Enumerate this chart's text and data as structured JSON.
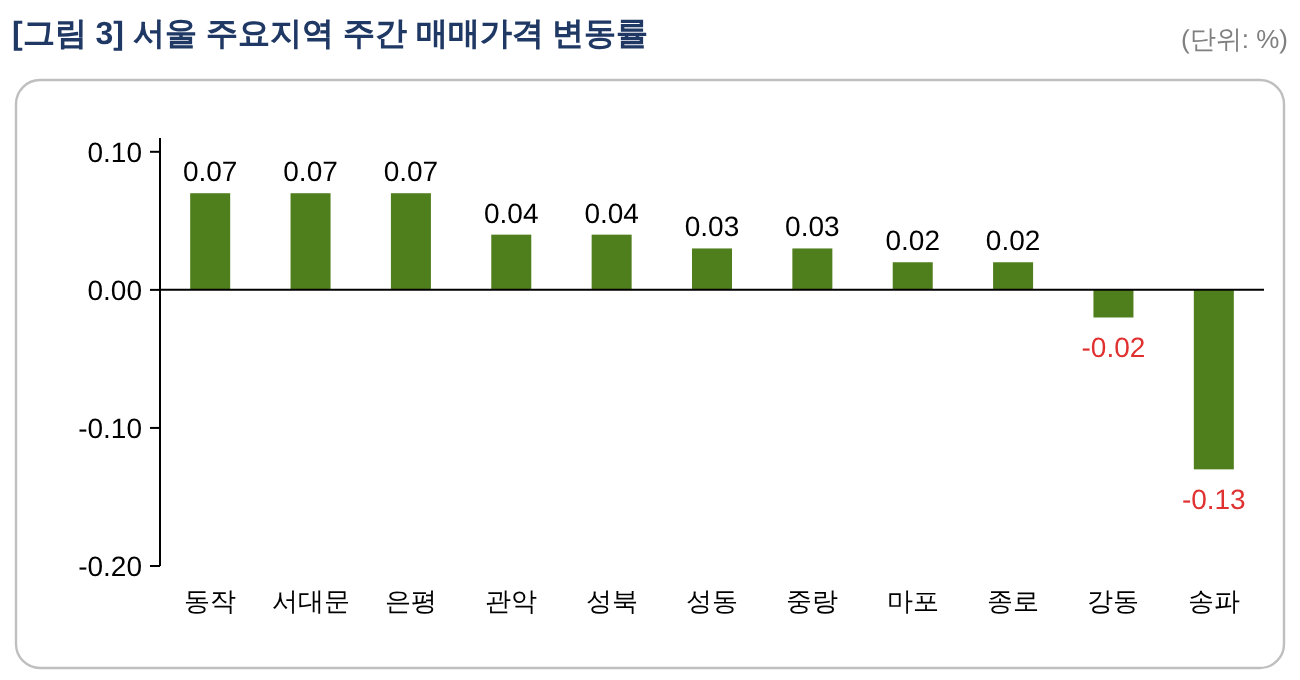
{
  "chart_data": {
    "type": "bar",
    "title": "[그림 3] 서울 주요지역 주간 매매가격 변동률",
    "annotations": [
      "(단위: %)"
    ],
    "categories": [
      "동작",
      "서대문",
      "은평",
      "관악",
      "성북",
      "성동",
      "중랑",
      "마포",
      "종로",
      "강동",
      "송파"
    ],
    "values": [
      0.07,
      0.07,
      0.07,
      0.04,
      0.04,
      0.03,
      0.03,
      0.02,
      0.02,
      -0.02,
      -0.13
    ],
    "color": "#4f7f1c",
    "data_labels": true,
    "ylim": [
      -0.2,
      0.11
    ],
    "yticks": [
      {
        "value": 0.1,
        "label": "0.10"
      },
      {
        "value": 0,
        "label": "0.00"
      },
      {
        "value": -0.1,
        "label": "-0.10"
      },
      {
        "value": -0.2,
        "label": "-0.20"
      }
    ]
  }
}
